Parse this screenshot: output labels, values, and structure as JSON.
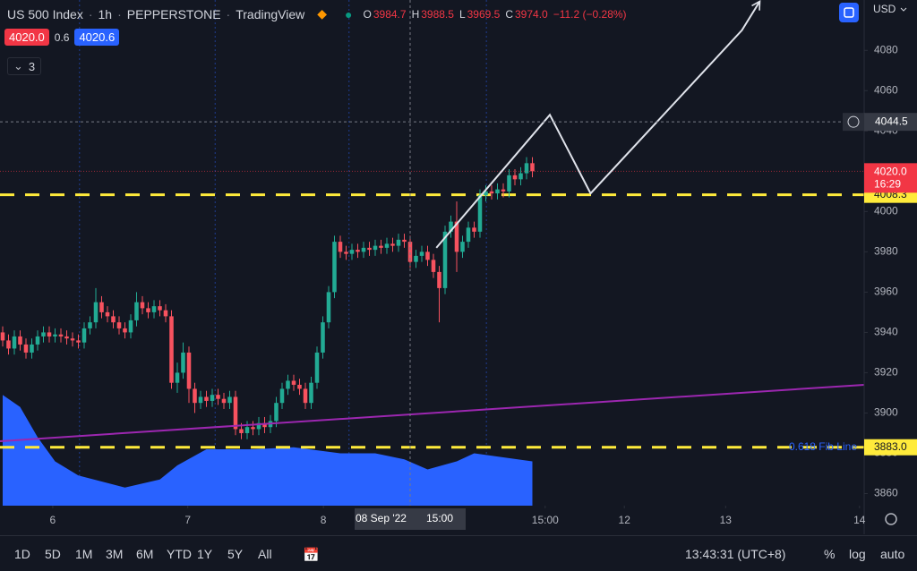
{
  "header": {
    "symbol": "US 500 Index",
    "interval": "1h",
    "exchange": "PEPPERSTONE",
    "source": "TradingView",
    "ohlc": [
      {
        "label": "O",
        "value": "3984.7"
      },
      {
        "label": "H",
        "value": "3988.5"
      },
      {
        "label": "L",
        "value": "3969.5"
      },
      {
        "label": "C",
        "value": "3974.0"
      }
    ],
    "change": "−11.2 (−0.28%)",
    "bid": "4020.0",
    "spread": "0.6",
    "ask": "4020.6",
    "indicators": "3",
    "currency": "USD"
  },
  "chart_data": {
    "type": "candlestick",
    "up_color": "#22ab94",
    "down_color": "#f7525f",
    "xlim": [
      -0.46,
      148
    ],
    "ylim": [
      3854,
      4105
    ],
    "yticks": [
      3860,
      3880,
      3900,
      3920,
      3940,
      3960,
      3980,
      4000,
      4020,
      4040,
      4060,
      4080
    ],
    "xticks": [
      {
        "value": 8.6,
        "label": "6"
      },
      {
        "value": 31.8,
        "label": "7"
      },
      {
        "value": 55.1,
        "label": "8"
      },
      {
        "value": 93.2,
        "label": "15:00"
      },
      {
        "value": 106.8,
        "label": "12"
      },
      {
        "value": 124.2,
        "label": "13"
      },
      {
        "value": 147.2,
        "label": "14"
      }
    ],
    "session_breaks": [
      13.2,
      36.5,
      59.5,
      83.1
    ],
    "open": [
      3940,
      3936,
      3932,
      3938,
      3934,
      3930,
      3934,
      3938,
      3940,
      3938,
      3939,
      3938,
      3937,
      3936,
      3935,
      3942,
      3945,
      3955,
      3950,
      3948,
      3945,
      3942,
      3940,
      3946,
      3955,
      3952,
      3950,
      3953,
      3951,
      3948,
      3915,
      3920,
      3930,
      3912,
      3905,
      3908,
      3906,
      3909,
      3907,
      3905,
      3908,
      3892,
      3890,
      3893,
      3892,
      3895,
      3893,
      3896,
      3905,
      3912,
      3916,
      3914,
      3912,
      3905,
      3915,
      3930,
      3945,
      3960,
      3985,
      3980,
      3979,
      3981,
      3980,
      3982,
      3981,
      3983,
      3982,
      3984,
      3983,
      3986,
      3985,
      3975,
      3978,
      3980,
      3976,
      3970,
      3962,
      3990,
      3995,
      3980,
      3985,
      3992,
      3990,
      4008,
      4010,
      4009,
      4011,
      4010,
      4018,
      4016,
      4019,
      4024
    ],
    "high": [
      3943,
      3939,
      3941,
      3941,
      3937,
      3937,
      3941,
      3943,
      3943,
      3942,
      3942,
      3941,
      3940,
      3939,
      3945,
      3948,
      3962,
      3958,
      3953,
      3951,
      3948,
      3945,
      3949,
      3960,
      3958,
      3955,
      3956,
      3956,
      3954,
      3951,
      3925,
      3935,
      3933,
      3915,
      3911,
      3911,
      3912,
      3912,
      3910,
      3911,
      3911,
      3895,
      3896,
      3896,
      3898,
      3898,
      3899,
      3908,
      3915,
      3919,
      3919,
      3917,
      3915,
      3918,
      3933,
      3948,
      3963,
      3988,
      3988,
      3983,
      3984,
      3984,
      3985,
      3985,
      3986,
      3986,
      3987,
      3987,
      3989,
      3989,
      3988,
      3981,
      3983,
      3983,
      3979,
      3973,
      3993,
      3998,
      4005,
      3988,
      3995,
      3995,
      4011,
      4013,
      4013,
      4014,
      4014,
      4021,
      4021,
      4022,
      4027,
      4027
    ],
    "low": [
      3933,
      3929,
      3929,
      3931,
      3927,
      3927,
      3931,
      3935,
      3935,
      3935,
      3935,
      3934,
      3933,
      3932,
      3932,
      3939,
      3942,
      3947,
      3945,
      3942,
      3939,
      3937,
      3937,
      3943,
      3949,
      3947,
      3947,
      3948,
      3945,
      3912,
      3910,
      3917,
      3905,
      3900,
      3902,
      3903,
      3903,
      3904,
      3902,
      3902,
      3889,
      3887,
      3887,
      3889,
      3889,
      3890,
      3890,
      3893,
      3902,
      3909,
      3911,
      3909,
      3902,
      3902,
      3912,
      3927,
      3942,
      3957,
      3977,
      3976,
      3976,
      3977,
      3977,
      3978,
      3978,
      3979,
      3979,
      3980,
      3980,
      3982,
      3972,
      3972,
      3975,
      3973,
      3967,
      3945,
      3959,
      3987,
      3970,
      3977,
      3982,
      3987,
      3987,
      4005,
      4006,
      4006,
      4007,
      4007,
      4013,
      4013,
      4016,
      4017
    ],
    "close": [
      3936,
      3932,
      3938,
      3934,
      3930,
      3934,
      3938,
      3940,
      3938,
      3939,
      3938,
      3937,
      3936,
      3935,
      3942,
      3945,
      3955,
      3950,
      3948,
      3945,
      3942,
      3940,
      3946,
      3955,
      3952,
      3950,
      3953,
      3951,
      3948,
      3915,
      3920,
      3930,
      3912,
      3905,
      3908,
      3906,
      3909,
      3907,
      3905,
      3908,
      3892,
      3890,
      3893,
      3892,
      3895,
      3893,
      3896,
      3905,
      3912,
      3916,
      3914,
      3912,
      3905,
      3915,
      3930,
      3945,
      3960,
      3985,
      3980,
      3979,
      3981,
      3980,
      3982,
      3981,
      3983,
      3982,
      3984,
      3983,
      3986,
      3985,
      3975,
      3978,
      3980,
      3976,
      3970,
      3962,
      3990,
      3995,
      3980,
      3985,
      3992,
      3990,
      4008,
      4010,
      4009,
      4011,
      4010,
      4018,
      4016,
      4019,
      4024,
      4020
    ],
    "area": {
      "color": "#2962ff",
      "x": [
        0,
        3,
        6,
        9,
        13,
        21,
        27,
        30,
        35,
        43,
        50,
        58,
        64,
        69,
        73,
        78,
        81,
        86,
        91
      ],
      "values": [
        3909,
        3903,
        3888,
        3876,
        3869,
        3863,
        3867,
        3874,
        3882,
        3882,
        3883,
        3880,
        3880,
        3877,
        3872,
        3876,
        3880,
        3878,
        3876
      ]
    },
    "trendline": {
      "color": "#9c27b0",
      "x": [
        -0.46,
        148
      ],
      "y": [
        3886,
        3914
      ]
    },
    "drawing": {
      "color": "#e0e3eb",
      "x": [
        74.5,
        94,
        101,
        127,
        130
      ],
      "y": [
        3982,
        4048,
        4009,
        4090,
        4104
      ]
    },
    "hlines": [
      {
        "value": 4008.3,
        "label": "4008.3",
        "color": "#ffeb3b"
      },
      {
        "value": 3883,
        "label": "3883.0",
        "color": "#ffeb3b",
        "text": "0.618 Fib Line"
      }
    ],
    "price_line": {
      "value": 4020,
      "label": "4020.0",
      "countdown": "16:29",
      "color": "#f23645"
    },
    "crosshair": {
      "x": 70,
      "y": 4044.5,
      "y_label": "4044.5",
      "date_label": "08 Sep '22",
      "time_label": "15:00"
    }
  },
  "toolbar": {
    "ranges": [
      "1D",
      "5D",
      "1M",
      "3M",
      "6M",
      "YTD",
      "1Y",
      "5Y",
      "All"
    ],
    "time": "13:43:31 (UTC+8)",
    "percent": "%",
    "log": "log",
    "auto": "auto"
  }
}
